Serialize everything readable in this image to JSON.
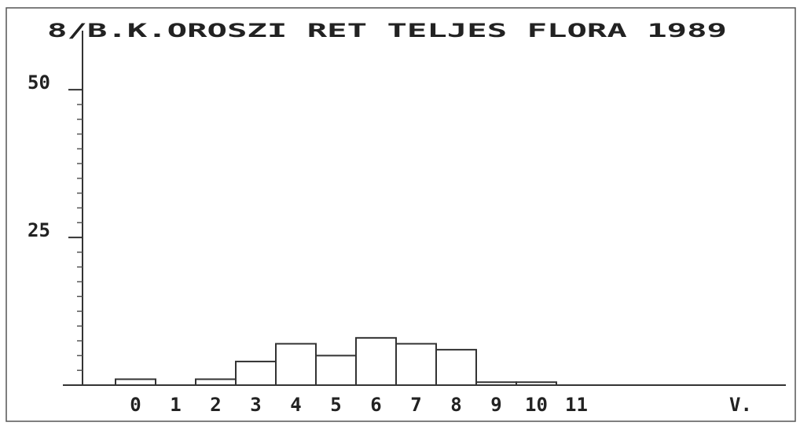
{
  "chart_data": {
    "type": "bar",
    "title": "8/B.K.OROSZI RET TELJES FLORA 1989",
    "x_label": "V.",
    "categories": [
      "0",
      "1",
      "2",
      "3",
      "4",
      "5",
      "6",
      "7",
      "8",
      "9",
      "10",
      "11"
    ],
    "values": [
      1,
      0,
      1,
      4,
      7,
      5,
      8,
      7,
      6,
      0.5,
      0.5,
      0
    ],
    "color": "#ffffff",
    "ylim": [
      0,
      60
    ],
    "yticks": [
      25,
      50
    ],
    "minor_yticks": [
      2.5,
      5,
      7.5,
      10,
      12.5,
      15,
      17.5,
      20,
      22.5,
      27.5,
      30,
      32.5,
      35,
      37.5,
      40,
      42.5,
      45,
      47.5
    ],
    "grid": false
  }
}
